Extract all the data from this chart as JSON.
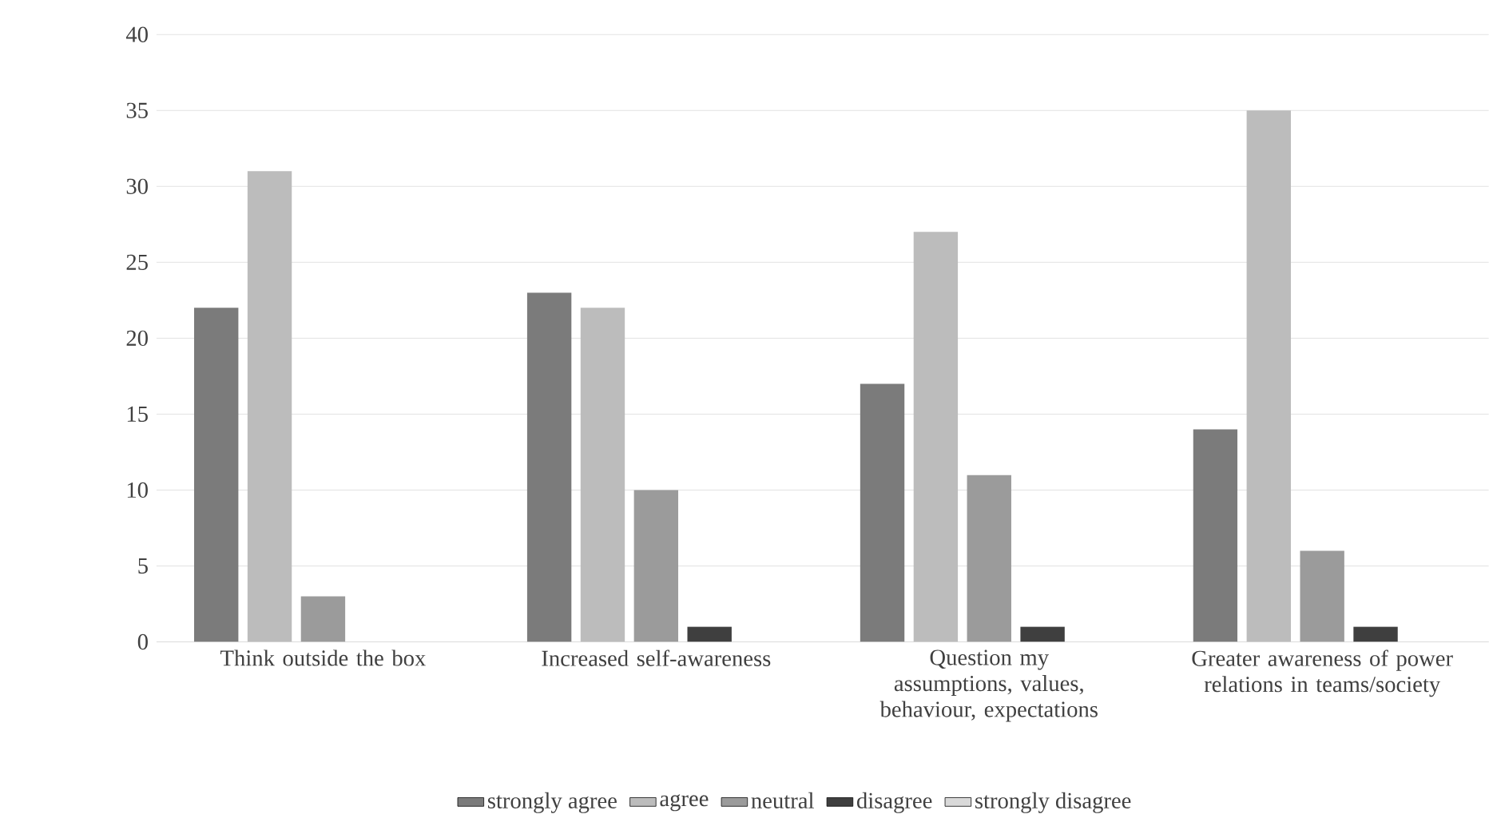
{
  "chart_data": {
    "type": "bar",
    "categories": [
      "Think outside the box",
      "Increased self-awareness",
      "Question my assumptions, values, behaviour, expectations",
      "Greater awareness of power relations in teams/society"
    ],
    "series": [
      {
        "name": "strongly agree",
        "color": "#7b7b7b",
        "values": [
          22,
          23,
          17,
          14
        ]
      },
      {
        "name": "agree",
        "color": "#bcbcbc",
        "values": [
          31,
          22,
          27,
          35
        ]
      },
      {
        "name": "neutral",
        "color": "#9b9b9b",
        "values": [
          3,
          10,
          11,
          6
        ]
      },
      {
        "name": "disagree",
        "color": "#3f3f3f",
        "values": [
          0,
          1,
          1,
          1
        ]
      },
      {
        "name": "strongly disagree",
        "color": "#d9d9d9",
        "values": [
          0,
          0,
          0,
          0
        ]
      }
    ],
    "ylim": [
      0,
      40
    ],
    "yticks": [
      0,
      5,
      10,
      15,
      20,
      25,
      30,
      35,
      40
    ],
    "grid": "y",
    "legend": "bottom"
  }
}
